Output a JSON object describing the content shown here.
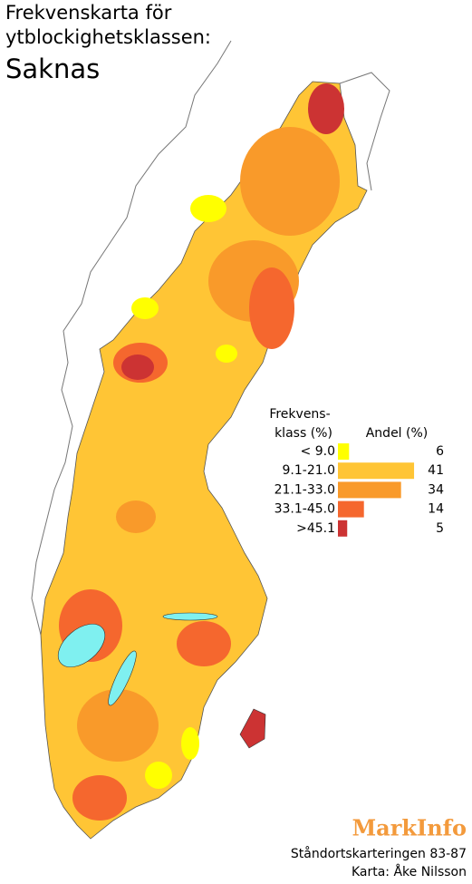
{
  "title": {
    "line1": "Frekvenskarta för",
    "line2": "ytblockighetsklassen:",
    "subject": "Saknas"
  },
  "legend": {
    "class_header": [
      "Frekvens-",
      "klass (%)"
    ],
    "share_header": "Andel (%)",
    "classes": [
      {
        "label": "< 9.0",
        "color": "#ffff00",
        "share": 6
      },
      {
        "label": "9.1-21.0",
        "color": "#ffc535",
        "share": 41
      },
      {
        "label": "21.1-33.0",
        "color": "#f99a2a",
        "share": 34
      },
      {
        "label": "33.1-45.0",
        "color": "#f5672e",
        "share": 14
      },
      {
        "label": ">45.1",
        "color": "#cc3333",
        "share": 5
      }
    ]
  },
  "brand": "MarkInfo",
  "credits": [
    "Ståndortskarteringen 83-87",
    "Karta: Åke Nilsson"
  ]
}
